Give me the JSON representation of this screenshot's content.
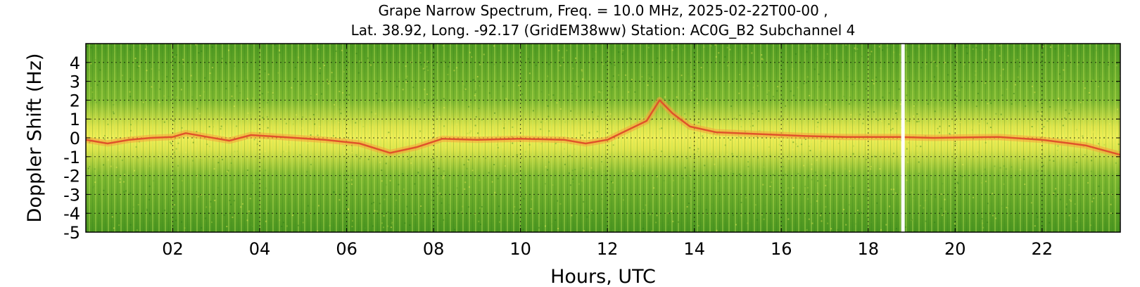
{
  "chart_data": {
    "type": "heatmap",
    "title_lines": [
      "Grape Narrow Spectrum, Freq. = 10.0 MHz, 2025-02-22T00-00 ,",
      "Lat.  38.92, Long. -92.17 (GridEM38ww) Station: AC0G_B2 Subchannel 4"
    ],
    "xlabel": "Hours, UTC",
    "ylabel": "Doppler Shift (Hz)",
    "x_range_hours": [
      0,
      23.8
    ],
    "y_range_hz": [
      -5,
      5
    ],
    "x_ticks": [
      {
        "value": 2,
        "label": "02"
      },
      {
        "value": 4,
        "label": "04"
      },
      {
        "value": 6,
        "label": "06"
      },
      {
        "value": 8,
        "label": "08"
      },
      {
        "value": 10,
        "label": "10"
      },
      {
        "value": 12,
        "label": "12"
      },
      {
        "value": 14,
        "label": "14"
      },
      {
        "value": 16,
        "label": "16"
      },
      {
        "value": 18,
        "label": "18"
      },
      {
        "value": 20,
        "label": "20"
      },
      {
        "value": 22,
        "label": "22"
      }
    ],
    "y_ticks": [
      {
        "value": 4,
        "label": "4"
      },
      {
        "value": 3,
        "label": "3"
      },
      {
        "value": 2,
        "label": "2"
      },
      {
        "value": 1,
        "label": "1"
      },
      {
        "value": 0,
        "label": "0"
      },
      {
        "value": -1,
        "label": "-1"
      },
      {
        "value": -2,
        "label": "-2"
      },
      {
        "value": -3,
        "label": "-3"
      },
      {
        "value": -4,
        "label": "-4"
      },
      {
        "value": -5,
        "label": "-5"
      }
    ],
    "grid": "dotted",
    "data_gap_hour": 18.8,
    "colormap": [
      "#2d7a17",
      "#5aa02a",
      "#a8cf3c",
      "#f0ee55",
      "#f5a23a",
      "#e0532a"
    ],
    "doppler_trace": [
      {
        "x": 0.0,
        "y": -0.1
      },
      {
        "x": 0.5,
        "y": -0.3
      },
      {
        "x": 1.0,
        "y": -0.1
      },
      {
        "x": 1.5,
        "y": 0.0
      },
      {
        "x": 2.0,
        "y": 0.05
      },
      {
        "x": 2.3,
        "y": 0.25
      },
      {
        "x": 2.8,
        "y": 0.05
      },
      {
        "x": 3.3,
        "y": -0.15
      },
      {
        "x": 3.8,
        "y": 0.15
      },
      {
        "x": 4.5,
        "y": 0.05
      },
      {
        "x": 5.5,
        "y": -0.1
      },
      {
        "x": 6.3,
        "y": -0.3
      },
      {
        "x": 7.0,
        "y": -0.8
      },
      {
        "x": 7.6,
        "y": -0.5
      },
      {
        "x": 8.2,
        "y": -0.05
      },
      {
        "x": 9.0,
        "y": -0.1
      },
      {
        "x": 10.0,
        "y": -0.05
      },
      {
        "x": 11.0,
        "y": -0.1
      },
      {
        "x": 11.5,
        "y": -0.3
      },
      {
        "x": 12.0,
        "y": -0.1
      },
      {
        "x": 12.9,
        "y": 0.9
      },
      {
        "x": 13.2,
        "y": 2.0
      },
      {
        "x": 13.5,
        "y": 1.3
      },
      {
        "x": 13.9,
        "y": 0.6
      },
      {
        "x": 14.5,
        "y": 0.3
      },
      {
        "x": 15.5,
        "y": 0.2
      },
      {
        "x": 16.5,
        "y": 0.1
      },
      {
        "x": 17.5,
        "y": 0.05
      },
      {
        "x": 18.7,
        "y": 0.05
      },
      {
        "x": 19.5,
        "y": 0.0
      },
      {
        "x": 21.0,
        "y": 0.05
      },
      {
        "x": 22.0,
        "y": -0.1
      },
      {
        "x": 23.0,
        "y": -0.4
      },
      {
        "x": 23.8,
        "y": -0.9
      }
    ]
  }
}
